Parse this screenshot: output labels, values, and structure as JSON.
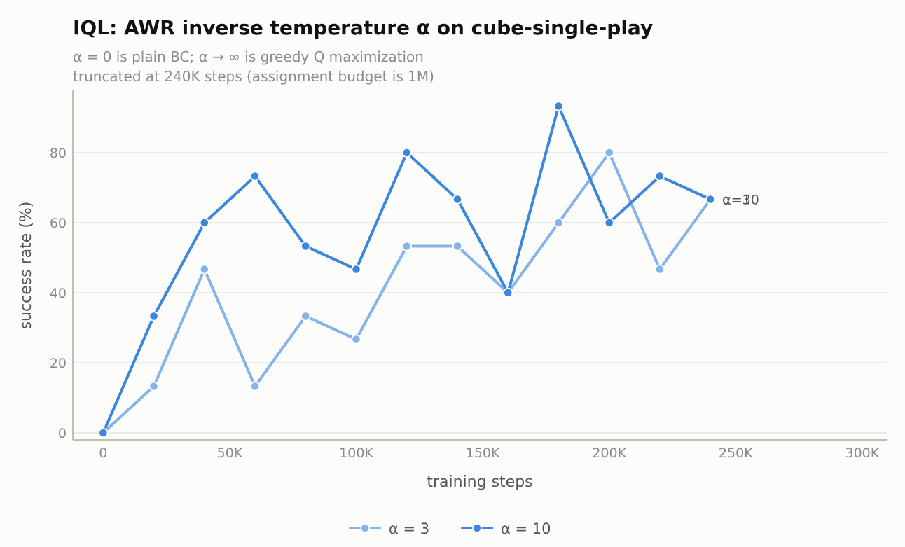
{
  "chart_data": {
    "type": "line",
    "title": "IQL: AWR inverse temperature α on cube-single-play",
    "subtitle_lines": [
      "α = 0 is plain BC; α → ∞ is greedy Q maximization",
      "truncated at 240K steps (assignment budget is 1M)"
    ],
    "xlabel": "training steps",
    "ylabel": "success rate (%)",
    "xlim": [
      -12000,
      310000
    ],
    "ylim": [
      -2,
      98
    ],
    "x_ticks": [
      0,
      50000,
      100000,
      150000,
      200000,
      250000,
      300000
    ],
    "x_tick_labels": [
      "0",
      "50K",
      "100K",
      "150K",
      "200K",
      "250K",
      "300K"
    ],
    "y_ticks": [
      0,
      20,
      40,
      60,
      80
    ],
    "y_tick_labels": [
      "0",
      "20",
      "40",
      "60",
      "80"
    ],
    "grid": "horizontal",
    "legend_position": "bottom-center",
    "x": [
      0,
      20000,
      40000,
      60000,
      80000,
      100000,
      120000,
      140000,
      160000,
      180000,
      200000,
      220000,
      240000
    ],
    "series": [
      {
        "name": "α = 3",
        "end_label": "α=3",
        "color": "#86b4ea",
        "values": [
          0,
          13.3,
          46.7,
          13.3,
          33.3,
          26.7,
          53.3,
          53.3,
          40,
          60,
          80,
          46.7,
          66.7
        ]
      },
      {
        "name": "α = 10",
        "end_label": "α=10",
        "color": "#3a87dd",
        "values": [
          0,
          33.3,
          60,
          73.3,
          53.3,
          46.7,
          80,
          66.7,
          40,
          93.3,
          60,
          73.3,
          66.7
        ]
      }
    ]
  },
  "colors": {
    "background": "#fcfcfb",
    "grid": "#dedede",
    "axis": "#bfc0b5"
  }
}
